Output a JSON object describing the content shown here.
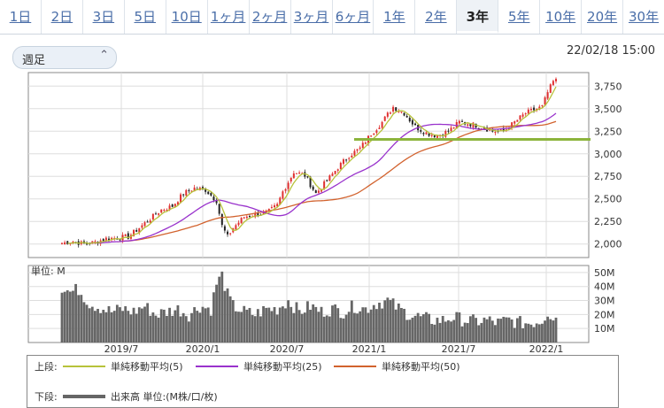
{
  "tabs": [
    {
      "label": "1日",
      "active": false
    },
    {
      "label": "2日",
      "active": false
    },
    {
      "label": "3日",
      "active": false
    },
    {
      "label": "5日",
      "active": false
    },
    {
      "label": "10日",
      "active": false
    },
    {
      "label": "1ヶ月",
      "active": false
    },
    {
      "label": "2ヶ月",
      "active": false
    },
    {
      "label": "3ヶ月",
      "active": false
    },
    {
      "label": "6ヶ月",
      "active": false
    },
    {
      "label": "1年",
      "active": false
    },
    {
      "label": "2年",
      "active": false
    },
    {
      "label": "3年",
      "active": true
    },
    {
      "label": "5年",
      "active": false
    },
    {
      "label": "10年",
      "active": false
    },
    {
      "label": "20年",
      "active": false
    },
    {
      "label": "30年",
      "active": false
    }
  ],
  "period_select": {
    "value": "週足"
  },
  "datetime": "22/02/18 15:00",
  "colors": {
    "up": "#e03030",
    "down": "#222222",
    "ma5": "#b7c23a",
    "ma25": "#9932cc",
    "ma50": "#d2622e",
    "volume": "#666666",
    "hline": "#8cb43c"
  },
  "legend": {
    "upper_label": "上段:",
    "lower_label": "下段:",
    "ma5": "単純移動平均(5)",
    "ma25": "単純移動平均(25)",
    "ma50": "単純移動平均(50)",
    "volume": "出来高 単位:(M株/口/枚)"
  },
  "chart_data": {
    "type": "candlestick",
    "price_axis": {
      "ticks": [
        2000,
        2250,
        2500,
        2750,
        3000,
        3250,
        3500,
        3750
      ],
      "tick_labels": [
        "2,000",
        "2,250",
        "2,500",
        "2,750",
        "3,000",
        "3,250",
        "3,500",
        "3,750"
      ],
      "range": [
        1850,
        3900
      ]
    },
    "volume_axis": {
      "ticks": [
        10,
        20,
        30,
        40,
        50
      ],
      "tick_labels": [
        "10M",
        "20M",
        "30M",
        "40M",
        "50M"
      ],
      "range": [
        0,
        55
      ],
      "unit_label": "単位: M"
    },
    "x_labels": [
      "2019/7",
      "2020/1",
      "2020/7",
      "2021/1",
      "2021/7",
      "2022/1"
    ],
    "horizontal_line": 3160,
    "close_anchors": [
      [
        0,
        2010
      ],
      [
        4,
        2030
      ],
      [
        8,
        2000
      ],
      [
        12,
        2020
      ],
      [
        16,
        2060
      ],
      [
        20,
        2070
      ],
      [
        24,
        2080
      ],
      [
        28,
        2180
      ],
      [
        32,
        2280
      ],
      [
        36,
        2380
      ],
      [
        40,
        2420
      ],
      [
        44,
        2560
      ],
      [
        48,
        2620
      ],
      [
        52,
        2600
      ],
      [
        56,
        2480
      ],
      [
        58,
        2200
      ],
      [
        60,
        2080
      ],
      [
        62,
        2180
      ],
      [
        66,
        2300
      ],
      [
        70,
        2330
      ],
      [
        74,
        2340
      ],
      [
        78,
        2430
      ],
      [
        80,
        2580
      ],
      [
        84,
        2800
      ],
      [
        88,
        2760
      ],
      [
        92,
        2560
      ],
      [
        96,
        2700
      ],
      [
        100,
        2850
      ],
      [
        104,
        2980
      ],
      [
        108,
        3060
      ],
      [
        112,
        3220
      ],
      [
        116,
        3350
      ],
      [
        120,
        3520
      ],
      [
        124,
        3450
      ],
      [
        128,
        3300
      ],
      [
        132,
        3230
      ],
      [
        136,
        3200
      ],
      [
        140,
        3250
      ],
      [
        144,
        3350
      ],
      [
        148,
        3330
      ],
      [
        152,
        3300
      ],
      [
        156,
        3250
      ],
      [
        160,
        3250
      ],
      [
        164,
        3350
      ],
      [
        168,
        3450
      ],
      [
        172,
        3500
      ],
      [
        174,
        3520
      ],
      [
        176,
        3680
      ],
      [
        178,
        3800
      ]
    ],
    "volume_anchors": [
      [
        0,
        40
      ],
      [
        3,
        36
      ],
      [
        6,
        38
      ],
      [
        10,
        28
      ],
      [
        14,
        25
      ],
      [
        18,
        22
      ],
      [
        22,
        24
      ],
      [
        26,
        22
      ],
      [
        30,
        26
      ],
      [
        34,
        20
      ],
      [
        38,
        22
      ],
      [
        42,
        24
      ],
      [
        46,
        20
      ],
      [
        50,
        26
      ],
      [
        54,
        24
      ],
      [
        56,
        42
      ],
      [
        58,
        48
      ],
      [
        60,
        34
      ],
      [
        62,
        26
      ],
      [
        66,
        22
      ],
      [
        70,
        20
      ],
      [
        74,
        24
      ],
      [
        78,
        24
      ],
      [
        82,
        30
      ],
      [
        86,
        22
      ],
      [
        90,
        26
      ],
      [
        94,
        22
      ],
      [
        98,
        24
      ],
      [
        102,
        22
      ],
      [
        106,
        26
      ],
      [
        110,
        24
      ],
      [
        114,
        28
      ],
      [
        118,
        30
      ],
      [
        122,
        24
      ],
      [
        126,
        20
      ],
      [
        130,
        18
      ],
      [
        134,
        16
      ],
      [
        138,
        16
      ],
      [
        142,
        18
      ],
      [
        146,
        16
      ],
      [
        150,
        15
      ],
      [
        154,
        16
      ],
      [
        158,
        14
      ],
      [
        162,
        16
      ],
      [
        166,
        14
      ],
      [
        170,
        14
      ],
      [
        174,
        16
      ],
      [
        176,
        22
      ],
      [
        178,
        18
      ]
    ],
    "num_weeks": 180
  }
}
